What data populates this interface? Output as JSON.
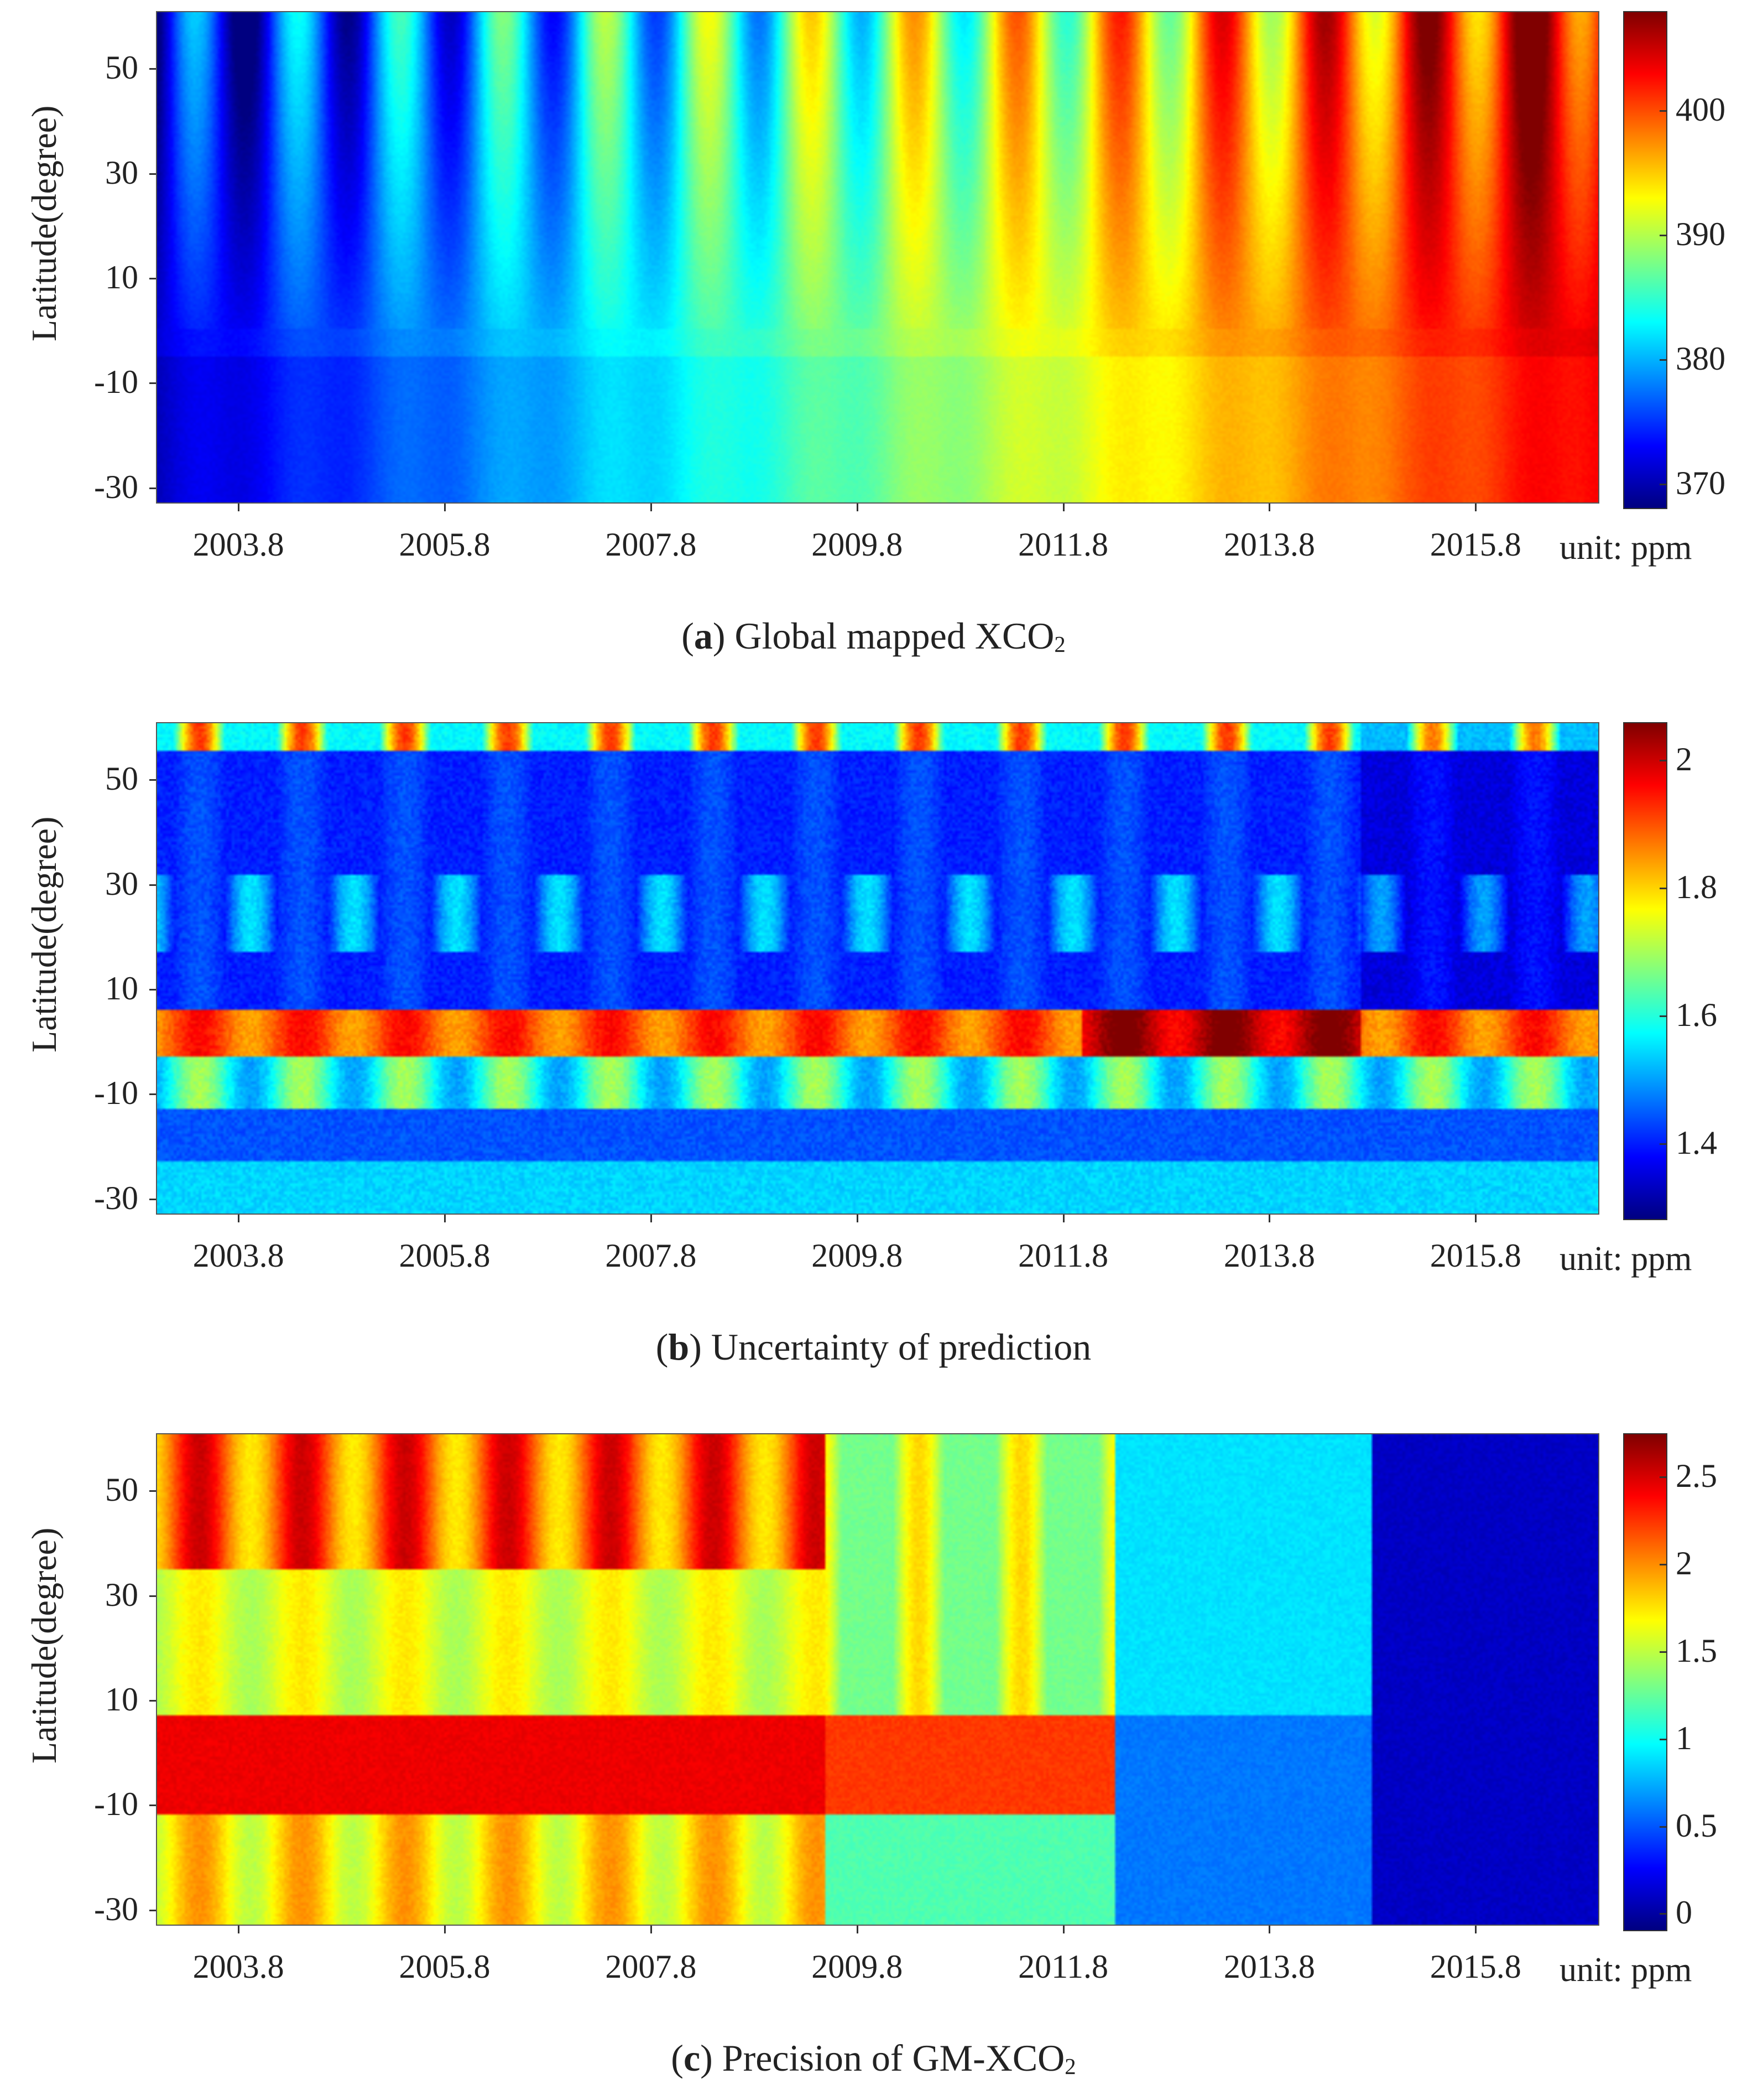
{
  "colormap": [
    "#000080",
    "#0000ff",
    "#0080ff",
    "#00ffff",
    "#80ff80",
    "#ffff00",
    "#ff8000",
    "#ff0000",
    "#800000"
  ],
  "chart_data": [
    {
      "type": "heatmap",
      "panel_letter": "a",
      "caption_text": " Global mapped XCO",
      "caption_sub": "2",
      "ylabel": "Latitude(degree)",
      "yticks": [
        "50",
        "30",
        "10",
        "-10",
        "-30"
      ],
      "ytick_values": [
        50,
        30,
        10,
        -10,
        -30
      ],
      "ylim": [
        -33,
        61
      ],
      "xticks": [
        "2003.8",
        "2005.8",
        "2007.8",
        "2009.8",
        "2011.8",
        "2013.8",
        "2015.8"
      ],
      "xtick_values": [
        2003.8,
        2005.8,
        2007.8,
        2009.8,
        2011.8,
        2013.8,
        2015.8
      ],
      "xlim": [
        2003.0,
        2017.0
      ],
      "unit": "unit: ppm",
      "colorbar_ticks": [
        "400",
        "390",
        "380",
        "370"
      ],
      "colorbar_tick_values": [
        400,
        390,
        380,
        370
      ],
      "colorbar_range": [
        368,
        408
      ],
      "description": "Increasing trend from ~372 ppm (2003) to ~405 ppm (2017) with seasonal oscillation stronger at northern latitudes"
    },
    {
      "type": "heatmap",
      "panel_letter": "b",
      "caption_text": " Uncertainty of prediction",
      "caption_sub": "",
      "ylabel": "Latitude(degree)",
      "yticks": [
        "50",
        "30",
        "10",
        "-10",
        "-30"
      ],
      "ytick_values": [
        50,
        30,
        10,
        -10,
        -30
      ],
      "ylim": [
        -33,
        61
      ],
      "xticks": [
        "2003.8",
        "2005.8",
        "2007.8",
        "2009.8",
        "2011.8",
        "2013.8",
        "2015.8"
      ],
      "xtick_values": [
        2003.8,
        2005.8,
        2007.8,
        2009.8,
        2011.8,
        2013.8,
        2015.8
      ],
      "xlim": [
        2003.0,
        2017.0
      ],
      "unit": "unit: ppm",
      "colorbar_ticks": [
        "2",
        "1.8",
        "1.6",
        "1.4"
      ],
      "colorbar_tick_values": [
        2,
        1.8,
        1.6,
        1.4
      ],
      "colorbar_range": [
        1.28,
        2.06
      ],
      "description": "High uncertainty band near the equator (-3 to 7 degrees), seasonal peaks at high northern latitudes"
    },
    {
      "type": "heatmap",
      "panel_letter": "c",
      "caption_text": " Precision of GM-XCO",
      "caption_sub": "2",
      "ylabel": "Latitude(degree)",
      "yticks": [
        "50",
        "30",
        "10",
        "-10",
        "-30"
      ],
      "ytick_values": [
        50,
        30,
        10,
        -10,
        -30
      ],
      "ylim": [
        -33,
        61
      ],
      "xticks": [
        "2003.8",
        "2005.8",
        "2007.8",
        "2009.8",
        "2011.8",
        "2013.8",
        "2015.8"
      ],
      "xtick_values": [
        2003.8,
        2005.8,
        2007.8,
        2009.8,
        2011.8,
        2013.8,
        2015.8
      ],
      "xlim": [
        2003.0,
        2017.0
      ],
      "unit": "unit: ppm",
      "colorbar_ticks": [
        "2.5",
        "2",
        "1.5",
        "1",
        "0.5",
        "0"
      ],
      "colorbar_tick_values": [
        2.5,
        2,
        1.5,
        1,
        0.5,
        0
      ],
      "colorbar_range": [
        -0.1,
        2.75
      ],
      "description": "High precision error before 2009, decreasing after 2012, lowest after 2015"
    }
  ]
}
